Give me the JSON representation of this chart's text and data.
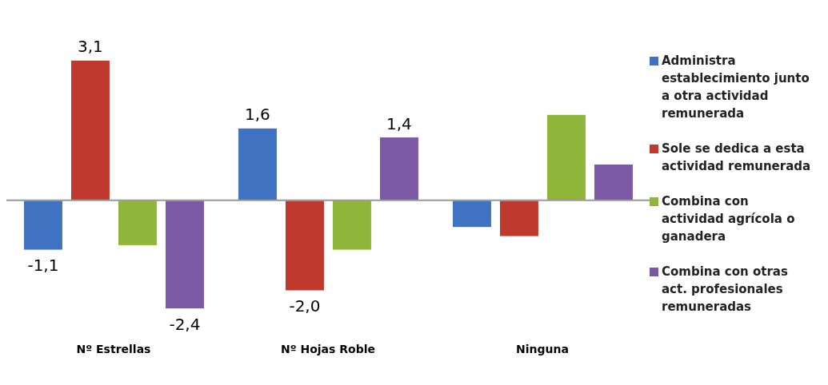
{
  "chart_data": {
    "type": "bar",
    "categories": [
      "Nº Estrellas",
      "Nº Hojas Roble",
      "Ninguna"
    ],
    "series": [
      {
        "name": "Administra establecimiento junto a otra actividad remunerada",
        "color": "#3f72c0",
        "values": [
          -1.1,
          1.6,
          -0.6
        ],
        "value_labels": [
          "-1,1",
          "1,6",
          null
        ]
      },
      {
        "name": "Sole se dedica a esta actividad remunerada",
        "color": "#c0392f",
        "values": [
          3.1,
          -2.0,
          -0.8
        ],
        "value_labels": [
          "3,1",
          "-2,0",
          null
        ]
      },
      {
        "name": "Combina con actividad agrícola o ganadera",
        "color": "#8fb63a",
        "values": [
          -1.0,
          -1.1,
          1.9
        ],
        "value_labels": [
          null,
          null,
          null
        ]
      },
      {
        "name": "Combina con otras act. profesionales remuneradas",
        "color": "#7b59a4",
        "values": [
          -2.4,
          1.4,
          0.8
        ],
        "value_labels": [
          "-2,4",
          "1,4",
          null
        ]
      }
    ],
    "legend": "right"
  }
}
